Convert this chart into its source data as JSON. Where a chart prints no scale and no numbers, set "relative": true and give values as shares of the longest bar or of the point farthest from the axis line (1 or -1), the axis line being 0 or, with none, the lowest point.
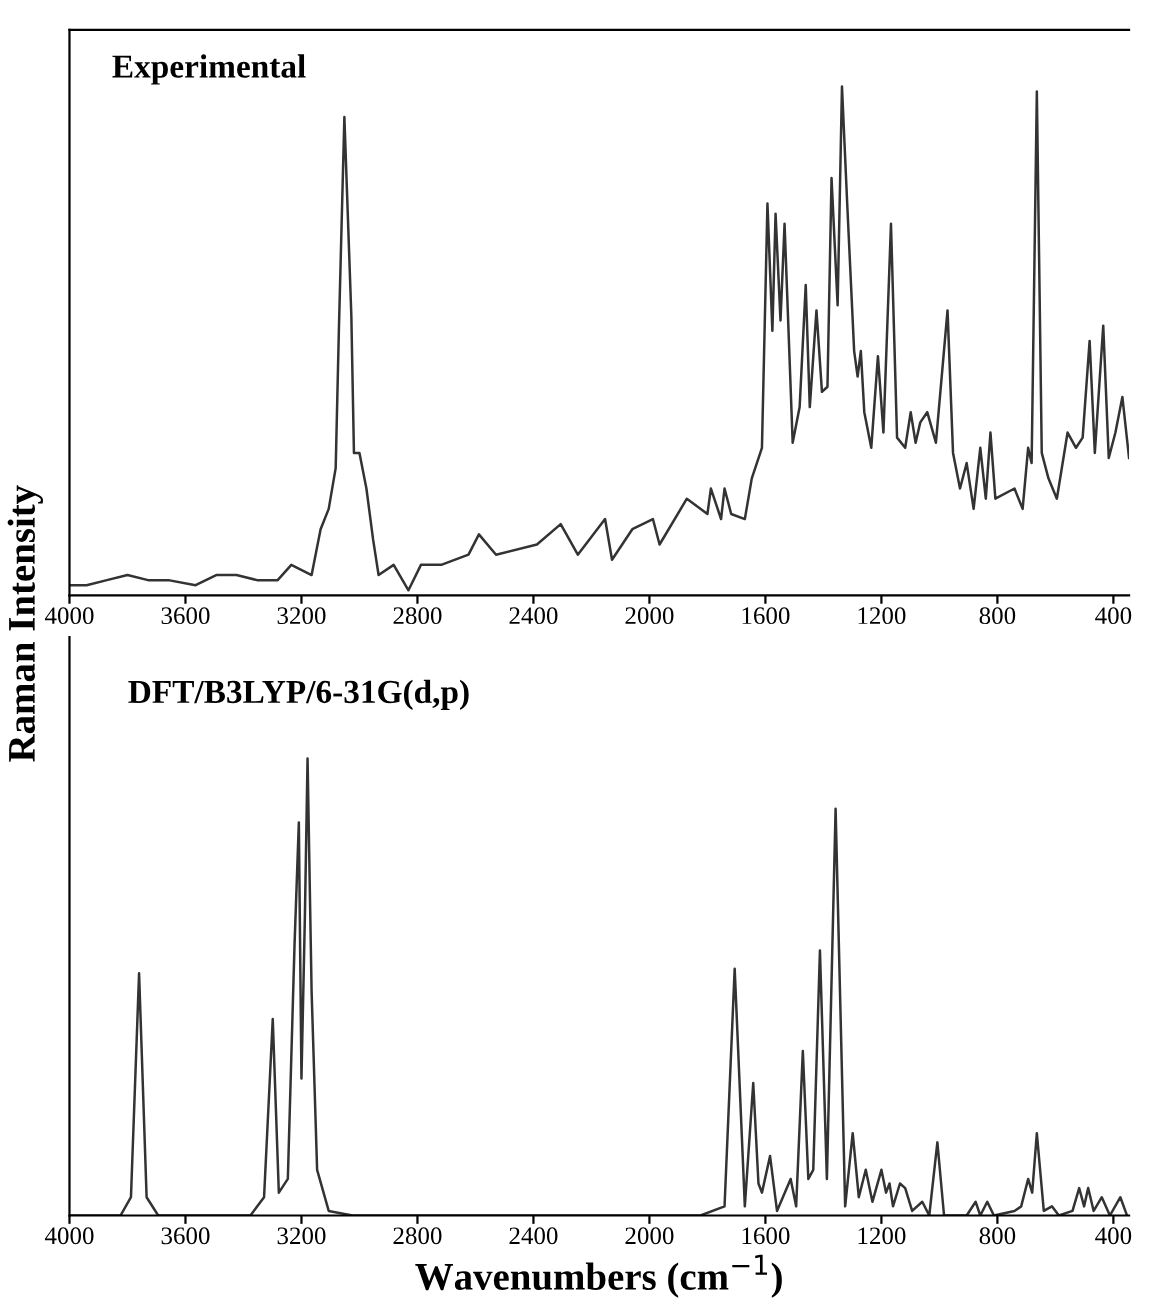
{
  "chart_data": [
    {
      "type": "line",
      "title": "Experimental",
      "ylabel": "Raman Intensity",
      "relative": true,
      "color": "#333333",
      "x": [
        4000,
        3941,
        3871,
        3800,
        3729,
        3659,
        3565,
        3494,
        3424,
        3353,
        3282,
        3235,
        3165,
        3134,
        3106,
        3082,
        3071,
        3052,
        3028,
        3019,
        3000,
        2976,
        2953,
        2934,
        2882,
        2831,
        2788,
        2718,
        2624,
        2588,
        2529,
        2388,
        2306,
        2247,
        2153,
        2129,
        2059,
        1988,
        1965,
        1871,
        1800,
        1788,
        1753,
        1741,
        1718,
        1671,
        1647,
        1612,
        1593,
        1576,
        1565,
        1548,
        1534,
        1506,
        1482,
        1461,
        1447,
        1424,
        1405,
        1386,
        1372,
        1351,
        1336,
        1318,
        1294,
        1282,
        1271,
        1259,
        1235,
        1212,
        1193,
        1167,
        1146,
        1118,
        1099,
        1082,
        1066,
        1042,
        1012,
        972,
        953,
        929,
        906,
        882,
        859,
        840,
        824,
        807,
        741,
        713,
        694,
        682,
        664,
        647,
        624,
        595,
        558,
        529,
        506,
        482,
        464,
        435,
        416,
        393,
        369,
        346
      ],
      "values": [
        0.02,
        0.02,
        0.03,
        0.04,
        0.03,
        0.03,
        0.02,
        0.04,
        0.04,
        0.03,
        0.03,
        0.06,
        0.04,
        0.13,
        0.17,
        0.25,
        0.52,
        0.94,
        0.55,
        0.28,
        0.28,
        0.21,
        0.11,
        0.04,
        0.06,
        0.01,
        0.06,
        0.06,
        0.08,
        0.12,
        0.08,
        0.1,
        0.14,
        0.08,
        0.15,
        0.07,
        0.13,
        0.15,
        0.1,
        0.19,
        0.16,
        0.21,
        0.15,
        0.21,
        0.16,
        0.15,
        0.23,
        0.29,
        0.77,
        0.52,
        0.75,
        0.54,
        0.73,
        0.3,
        0.37,
        0.61,
        0.37,
        0.56,
        0.4,
        0.41,
        0.82,
        0.57,
        1.0,
        0.77,
        0.48,
        0.43,
        0.48,
        0.36,
        0.29,
        0.47,
        0.32,
        0.73,
        0.31,
        0.29,
        0.36,
        0.3,
        0.34,
        0.36,
        0.3,
        0.56,
        0.28,
        0.21,
        0.26,
        0.17,
        0.29,
        0.19,
        0.32,
        0.19,
        0.21,
        0.17,
        0.29,
        0.26,
        0.99,
        0.28,
        0.23,
        0.19,
        0.32,
        0.29,
        0.31,
        0.5,
        0.28,
        0.53,
        0.27,
        0.32,
        0.39,
        0.27
      ],
      "xlim": [
        4000,
        346
      ],
      "xticks": [
        4000,
        3600,
        3200,
        2800,
        2400,
        2000,
        1600,
        1200,
        800,
        400
      ]
    },
    {
      "type": "line",
      "title": "DFT/B3LYP/6-31G(d,p)",
      "xlabel": "Wavenumbers (cm$^{−1}$)",
      "relative": true,
      "color": "#333333",
      "x": [
        4000,
        3824,
        3788,
        3760,
        3734,
        3694,
        3376,
        3329,
        3299,
        3278,
        3247,
        3224,
        3209,
        3200,
        3188,
        3179,
        3165,
        3146,
        3106,
        3024,
        1824,
        1741,
        1706,
        1671,
        1642,
        1624,
        1612,
        1584,
        1560,
        1513,
        1494,
        1471,
        1452,
        1435,
        1412,
        1388,
        1358,
        1325,
        1299,
        1278,
        1254,
        1231,
        1200,
        1184,
        1172,
        1160,
        1136,
        1118,
        1094,
        1059,
        1035,
        1007,
        984,
        906,
        875,
        859,
        835,
        812,
        741,
        718,
        694,
        680,
        664,
        640,
        612,
        588,
        541,
        518,
        501,
        487,
        468,
        440,
        412,
        376,
        353
      ],
      "values": [
        0,
        0,
        0.04,
        0.53,
        0.04,
        0,
        0,
        0.04,
        0.43,
        0.05,
        0.08,
        0.59,
        0.86,
        0.3,
        0.66,
        1.0,
        0.49,
        0.1,
        0.01,
        0,
        0,
        0.02,
        0.54,
        0.02,
        0.29,
        0.07,
        0.05,
        0.13,
        0.01,
        0.08,
        0.02,
        0.36,
        0.08,
        0.1,
        0.58,
        0.08,
        0.89,
        0.02,
        0.18,
        0.04,
        0.1,
        0.03,
        0.1,
        0.05,
        0.07,
        0.02,
        0.07,
        0.06,
        0.01,
        0.03,
        0,
        0.16,
        0,
        0,
        0.03,
        0,
        0.03,
        0,
        0.01,
        0.02,
        0.08,
        0.05,
        0.18,
        0.01,
        0.02,
        0,
        0.01,
        0.06,
        0.02,
        0.06,
        0.01,
        0.04,
        0,
        0.04,
        0
      ],
      "xlim": [
        4000,
        346
      ],
      "xticks": [
        4000,
        3600,
        3200,
        2800,
        2400,
        2000,
        1600,
        1200,
        800,
        400
      ]
    }
  ]
}
